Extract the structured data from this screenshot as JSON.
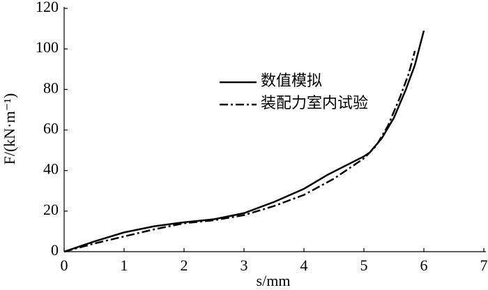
{
  "chart_data": {
    "type": "line",
    "x_label": "s/mm",
    "y_label": "F/(kN·m⁻¹)",
    "xlim": [
      0,
      7
    ],
    "xticks": [
      0,
      1,
      2,
      3,
      4,
      5,
      6,
      7
    ],
    "ylim": [
      0,
      120
    ],
    "yticks": [
      0,
      20,
      40,
      60,
      80,
      100,
      120
    ],
    "series": [
      {
        "name": "数值模拟",
        "color": "#000000",
        "dash": "solid",
        "x": [
          0,
          0.5,
          1,
          1.5,
          2,
          2.5,
          3,
          3.5,
          4,
          4.4,
          5,
          5.1,
          5.3,
          5.5,
          5.7,
          5.85,
          6
        ],
        "values": [
          0,
          5,
          9.5,
          12.5,
          14.5,
          16,
          19,
          24.5,
          31,
          38,
          47,
          49,
          56,
          66,
          80,
          92,
          109
        ]
      },
      {
        "name": "装配力室内试验",
        "color": "#000000",
        "dash": "dashdot",
        "x": [
          0,
          0.5,
          1,
          1.5,
          2,
          2.5,
          3,
          3.5,
          4,
          4.5,
          5,
          5.2,
          5.4,
          5.6,
          5.75,
          5.85
        ],
        "values": [
          0,
          4,
          7.5,
          11,
          14,
          15.5,
          18,
          22.5,
          28,
          36,
          46,
          52,
          62,
          76,
          88,
          99
        ]
      }
    ]
  }
}
